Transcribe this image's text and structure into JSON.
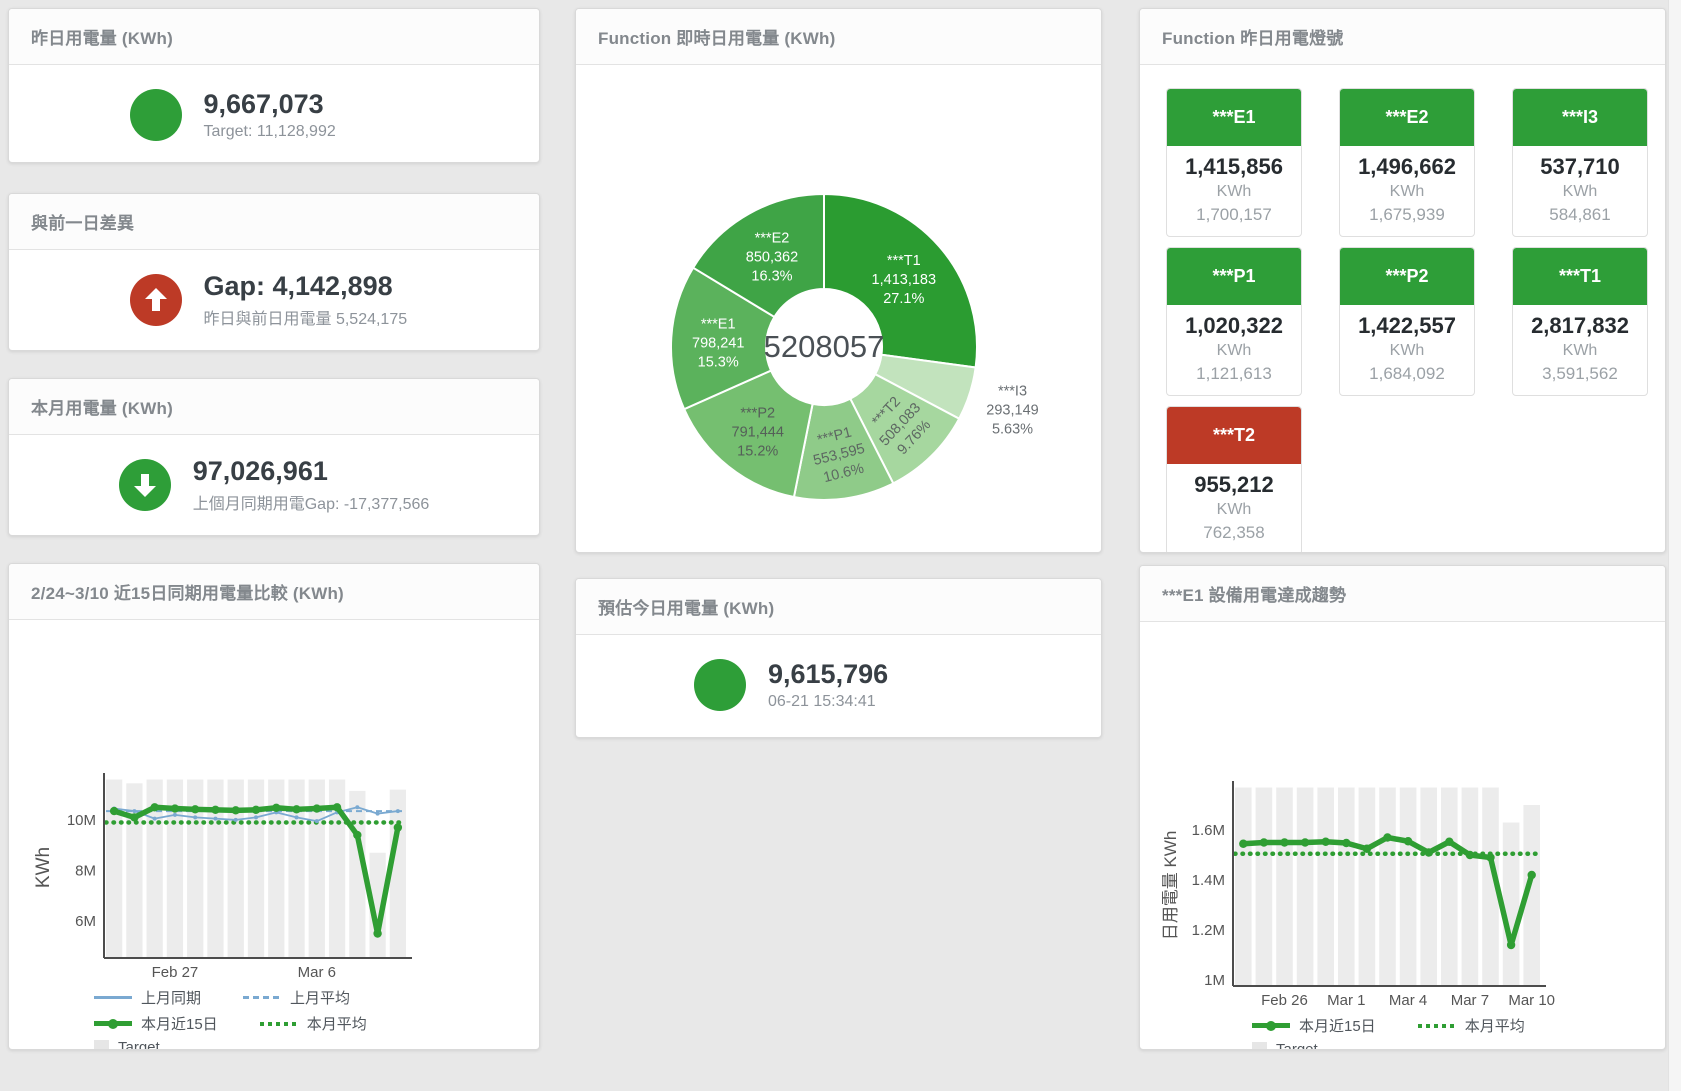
{
  "colors": {
    "green": "#2e9e38",
    "red": "#bd3a26",
    "line_green": "#2f9e33",
    "line_blue": "#7aa9d1",
    "bar_gray": "#ececec",
    "axis": "#4c4c4c",
    "tick_text": "#555555"
  },
  "cards": {
    "yesterday": {
      "title": "昨日用電量 (KWh)",
      "value": "9,667,073",
      "subtitle": "Target: 11,128,992"
    },
    "gap": {
      "title": "與前一日差異",
      "value": "Gap: 4,142,898",
      "subtitle": "昨日與前日用電量 5,524,175"
    },
    "month": {
      "title": "本月用電量 (KWh)",
      "value": "97,026,961",
      "subtitle": "上個月同期用電Gap: -17,377,566"
    },
    "compare": {
      "title": "2/24~3/10 近15日同期用電量比較 (KWh)"
    },
    "donut": {
      "title": "Function 即時日用電量 (KWh)"
    },
    "estimate": {
      "title": "預估今日用電量 (KWh)",
      "value": "9,615,796",
      "subtitle": "06-21 15:34:41"
    },
    "lights": {
      "title": "Function 昨日用電燈號"
    },
    "trend": {
      "title": "***E1 設備用電達成趨勢"
    }
  },
  "lights_panel": {
    "unit": "KWh",
    "status_colors": {
      "green": "#2e9e38",
      "red": "#bd3a26"
    },
    "tiles": [
      {
        "label": "***E1",
        "value": "1,415,856",
        "target": "1,700,157",
        "status": "green"
      },
      {
        "label": "***E2",
        "value": "1,496,662",
        "target": "1,675,939",
        "status": "green"
      },
      {
        "label": "***I3",
        "value": "537,710",
        "target": "584,861",
        "status": "green"
      },
      {
        "label": "***P1",
        "value": "1,020,322",
        "target": "1,121,613",
        "status": "green"
      },
      {
        "label": "***P2",
        "value": "1,422,557",
        "target": "1,684,092",
        "status": "green"
      },
      {
        "label": "***T1",
        "value": "2,817,832",
        "target": "3,591,562",
        "status": "green"
      },
      {
        "label": "***T2",
        "value": "955,212",
        "target": "762,358",
        "status": "red"
      }
    ]
  },
  "chart_data": [
    {
      "type": "pie",
      "title": "Function 即時日用電量 (KWh)",
      "center_total": "5208057",
      "slices": [
        {
          "name": "***T1",
          "value": 1413183,
          "value_fmt": "1,413,183",
          "pct": "27.1%",
          "color": "#2b9c31",
          "label_color": "#ffffff",
          "label_rotation": 0,
          "label_outside": false
        },
        {
          "name": "***I3",
          "value": 293149,
          "value_fmt": "293,149",
          "pct": "5.63%",
          "color": "#c2e3bd",
          "label_color": "#6a6f73",
          "label_rotation": 0,
          "label_outside": true
        },
        {
          "name": "***T2",
          "value": 508083,
          "value_fmt": "508,083",
          "pct": "9.76%",
          "color": "#a6d79f",
          "label_color": "#5d6762",
          "label_rotation": -47,
          "label_outside": false
        },
        {
          "name": "***P1",
          "value": 553595,
          "value_fmt": "553,595",
          "pct": "10.6%",
          "color": "#8fcb89",
          "label_color": "#5d6762",
          "label_rotation": -14,
          "label_outside": false
        },
        {
          "name": "***P2",
          "value": 791444,
          "value_fmt": "791,444",
          "pct": "15.2%",
          "color": "#75bf70",
          "label_color": "#555f59",
          "label_rotation": 0,
          "label_outside": false
        },
        {
          "name": "***E1",
          "value": 798241,
          "value_fmt": "798,241",
          "pct": "15.3%",
          "color": "#5bb25c",
          "label_color": "#ffffff",
          "label_rotation": 0,
          "label_outside": false
        },
        {
          "name": "***E2",
          "value": 850362,
          "value_fmt": "850,362",
          "pct": "16.3%",
          "color": "#3fa446",
          "label_color": "#ffffff",
          "label_rotation": 0,
          "label_outside": false
        }
      ]
    },
    {
      "type": "line",
      "title": "2/24~3/10 近15日同期用電量比較 (KWh)",
      "ylabel": "KWh",
      "unit": "M",
      "x": [
        "2/24",
        "2/25",
        "2/26",
        "2/27",
        "2/28",
        "3/1",
        "3/2",
        "3/3",
        "3/4",
        "3/5",
        "3/6",
        "3/7",
        "3/8",
        "3/9",
        "3/10"
      ],
      "x_tick_labels": [
        {
          "index": 3,
          "label": "Feb 27"
        },
        {
          "index": 10,
          "label": "Mar 6"
        }
      ],
      "y_ticks": [
        {
          "value": 6,
          "label": "6M"
        },
        {
          "value": 8,
          "label": "8M"
        },
        {
          "value": 10,
          "label": "10M"
        }
      ],
      "ylim": [
        4.53,
        11.7
      ],
      "grid": false,
      "legend_position": "bottom",
      "series": [
        {
          "name": "Target",
          "type": "bar",
          "color": "#ececec",
          "values": [
            11.6,
            11.45,
            11.6,
            11.6,
            11.6,
            11.6,
            11.6,
            11.6,
            11.6,
            11.6,
            11.6,
            11.6,
            11.15,
            8.7,
            11.2
          ]
        },
        {
          "name": "上月平均",
          "type": "avg",
          "style": "dashed",
          "color": "#7aa9d1",
          "value": 10.35
        },
        {
          "name": "上月同期",
          "type": "line",
          "style": "solid",
          "color": "#7aa9d1",
          "width": 1.8,
          "values": [
            10.45,
            10.35,
            10.05,
            10.2,
            10.1,
            10.05,
            10.0,
            10.1,
            10.3,
            10.1,
            9.95,
            10.3,
            10.5,
            10.25,
            10.35
          ]
        },
        {
          "name": "本月平均",
          "type": "avg",
          "style": "dotted",
          "color": "#2f9e33",
          "value": 9.9
        },
        {
          "name": "本月近15日",
          "type": "line",
          "style": "thick",
          "color": "#2f9e33",
          "width": 5.5,
          "values": [
            10.35,
            10.1,
            10.5,
            10.45,
            10.42,
            10.4,
            10.38,
            10.4,
            10.48,
            10.42,
            10.45,
            10.5,
            9.4,
            5.5,
            9.7
          ]
        }
      ],
      "legend_rows": [
        [
          {
            "label": "上月同期",
            "marker": "line",
            "color": "#7aa9d1"
          },
          {
            "label": "上月平均",
            "marker": "dashed",
            "color": "#7aa9d1"
          }
        ],
        [
          {
            "label": "本月近15日",
            "marker": "thick",
            "color": "#2f9e33"
          },
          {
            "label": "本月平均",
            "marker": "dotted",
            "color": "#2f9e33"
          }
        ],
        [
          {
            "label": "Target",
            "marker": "square",
            "color": "#e6e6e6"
          }
        ]
      ]
    },
    {
      "type": "line",
      "title": "***E1 設備用電達成趨勢",
      "ylabel": "日用電量 KWh",
      "unit": "M",
      "x": [
        "2/24",
        "2/25",
        "2/26",
        "2/27",
        "2/28",
        "3/1",
        "3/2",
        "3/3",
        "3/4",
        "3/5",
        "3/6",
        "3/7",
        "3/8",
        "3/9",
        "3/10"
      ],
      "x_tick_labels": [
        {
          "index": 2,
          "label": "Feb 26"
        },
        {
          "index": 5,
          "label": "Mar 1"
        },
        {
          "index": 8,
          "label": "Mar 4"
        },
        {
          "index": 11,
          "label": "Mar 7"
        },
        {
          "index": 14,
          "label": "Mar 10"
        }
      ],
      "y_ticks": [
        {
          "value": 1,
          "label": "1M"
        },
        {
          "value": 1.2,
          "label": "1.2M"
        },
        {
          "value": 1.4,
          "label": "1.4M"
        },
        {
          "value": 1.6,
          "label": "1.6M"
        }
      ],
      "ylim": [
        0.976,
        1.78
      ],
      "grid": false,
      "legend_position": "bottom",
      "series": [
        {
          "name": "Target",
          "type": "bar",
          "color": "#ececec",
          "values": [
            1.77,
            1.77,
            1.77,
            1.77,
            1.77,
            1.77,
            1.77,
            1.77,
            1.77,
            1.77,
            1.77,
            1.77,
            1.77,
            1.63,
            1.7
          ]
        },
        {
          "name": "本月平均",
          "type": "avg",
          "style": "dotted",
          "color": "#2f9e33",
          "value": 1.505
        },
        {
          "name": "本月近15日",
          "type": "line",
          "style": "thick",
          "color": "#2f9e33",
          "width": 5.5,
          "values": [
            1.545,
            1.55,
            1.55,
            1.55,
            1.553,
            1.548,
            1.525,
            1.57,
            1.555,
            1.51,
            1.553,
            1.5,
            1.49,
            1.14,
            1.42
          ]
        }
      ],
      "legend_rows": [
        [
          {
            "label": "本月近15日",
            "marker": "thick",
            "color": "#2f9e33"
          },
          {
            "label": "本月平均",
            "marker": "dotted",
            "color": "#2f9e33"
          }
        ],
        [
          {
            "label": "Target",
            "marker": "square",
            "color": "#e6e6e6"
          }
        ]
      ]
    }
  ]
}
